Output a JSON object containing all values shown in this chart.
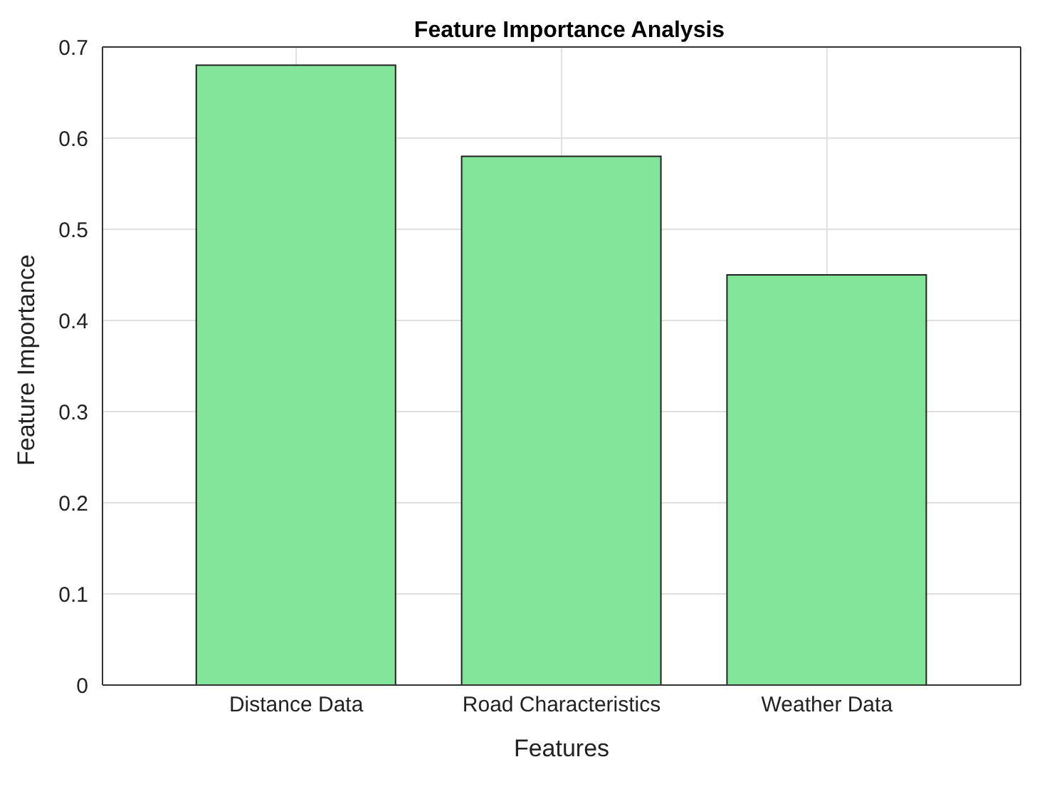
{
  "chart_data": {
    "type": "bar",
    "title": "Feature Importance Analysis",
    "xlabel": "Features",
    "ylabel": "Feature Importance",
    "categories": [
      "Distance Data",
      "Road Characteristics",
      "Weather Data"
    ],
    "values": [
      0.68,
      0.58,
      0.45
    ],
    "color": "#82e59a",
    "ylim": [
      0,
      0.7
    ],
    "yticks": [
      0,
      0.1,
      0.2,
      0.3,
      0.4,
      0.5,
      0.6,
      0.7
    ],
    "grid": true
  }
}
